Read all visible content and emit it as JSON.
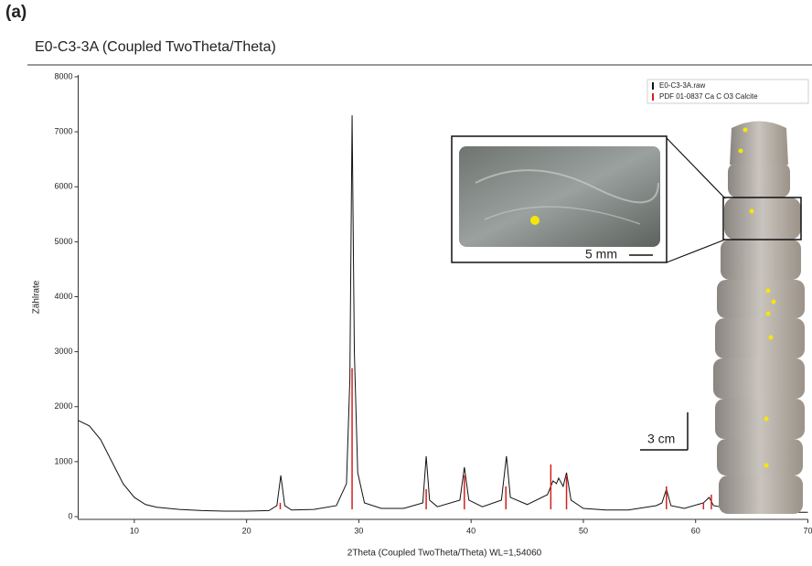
{
  "panel_label": "(a)",
  "chart_data": {
    "type": "line",
    "title": "E0-C3-3A (Coupled TwoTheta/Theta)",
    "x_label": "2Theta (Coupled TwoTheta/Theta) WL=1,54060",
    "y_label": "Zählrate",
    "xlim": [
      5,
      70
    ],
    "xticks": [
      10,
      20,
      30,
      40,
      50,
      60,
      70
    ],
    "ylim": [
      0,
      8000
    ],
    "yticks": [
      0,
      1000,
      2000,
      3000,
      4000,
      5000,
      6000,
      7000,
      8000
    ],
    "legend": "top-right",
    "series": [
      {
        "name": "E0-C3-3A.raw",
        "color": "#111111",
        "type": "line",
        "x": [
          5,
          6,
          7,
          8,
          9,
          10,
          11,
          12,
          14,
          16,
          18,
          20,
          22,
          22.7,
          23.05,
          23.4,
          24,
          26,
          28,
          28.9,
          29.2,
          29.4,
          29.6,
          29.9,
          30.5,
          32,
          34,
          35.7,
          36.0,
          36.3,
          37,
          39.0,
          39.4,
          39.8,
          41,
          42.7,
          43.15,
          43.5,
          45,
          46.8,
          47.3,
          47.6,
          47.8,
          48.2,
          48.5,
          48.9,
          50,
          52,
          54,
          56.5,
          57.0,
          57.4,
          57.8,
          59,
          60.7,
          61.2,
          61.6,
          63,
          64.5,
          64.8,
          65.3,
          67,
          69,
          70
        ],
        "values": [
          1750,
          1650,
          1400,
          1000,
          600,
          350,
          220,
          170,
          130,
          110,
          100,
          100,
          110,
          200,
          750,
          200,
          120,
          130,
          200,
          600,
          2500,
          7300,
          3000,
          800,
          250,
          150,
          150,
          250,
          1100,
          300,
          180,
          300,
          900,
          300,
          180,
          300,
          1100,
          350,
          220,
          400,
          650,
          600,
          700,
          550,
          800,
          300,
          150,
          120,
          120,
          200,
          250,
          500,
          200,
          150,
          250,
          350,
          200,
          150,
          250,
          350,
          200,
          100,
          80,
          80
        ]
      },
      {
        "name": "PDF 01-0837 Ca C O3 Calcite",
        "color": "#d42020",
        "type": "stick",
        "x": [
          23.0,
          29.4,
          36.0,
          39.4,
          43.1,
          47.1,
          48.5,
          57.4,
          60.7,
          61.4,
          62.9,
          64.7,
          65.6,
          69.2
        ],
        "values": [
          250,
          2700,
          500,
          750,
          550,
          950,
          750,
          550,
          250,
          400,
          200,
          300,
          150,
          150
        ]
      }
    ],
    "annotations": [
      "5 mm",
      "3 cm"
    ]
  }
}
